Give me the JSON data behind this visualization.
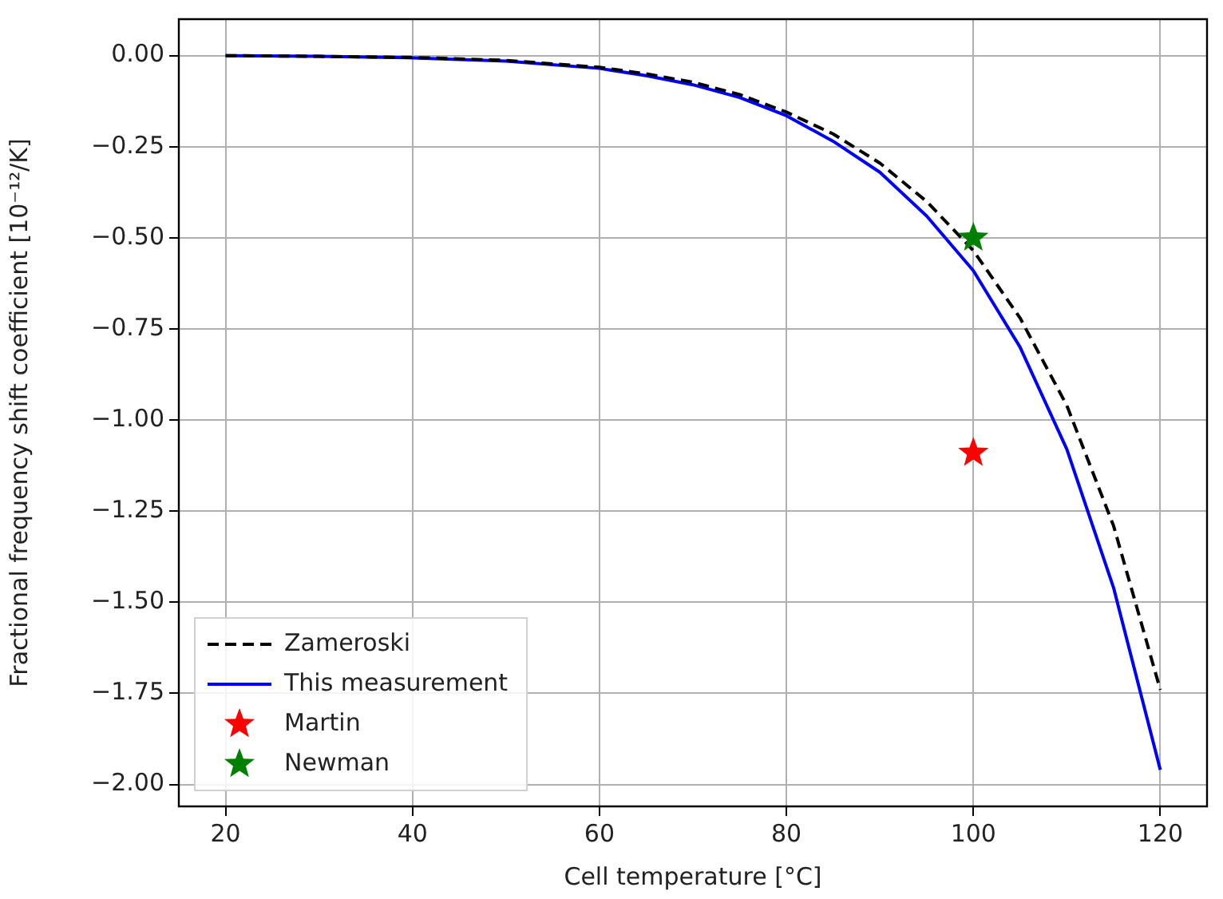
{
  "chart_data": {
    "type": "line",
    "xlabel": "Cell temperature [°C]",
    "ylabel": "Fractional frequency shift coefficient [10⁻¹²/K]",
    "xlim": [
      15,
      125
    ],
    "xticks": [
      20,
      40,
      60,
      80,
      100,
      120
    ],
    "ylim": [
      -2.06,
      0.1
    ],
    "yticks": [
      {
        "value": 0,
        "label": "0.00"
      },
      {
        "value": -0.25,
        "label": "−0.25"
      },
      {
        "value": -0.5,
        "label": "−0.50"
      },
      {
        "value": -0.75,
        "label": "−0.75"
      },
      {
        "value": -1,
        "label": "−1.00"
      },
      {
        "value": -1.25,
        "label": "−1.25"
      },
      {
        "value": -1.5,
        "label": "−1.50"
      },
      {
        "value": -1.75,
        "label": "−1.75"
      },
      {
        "value": -2,
        "label": "−2.00"
      }
    ],
    "grid": true,
    "legend": "bottom left",
    "series": [
      {
        "name": "Zameroski",
        "line_style": "dashed",
        "color": "#000000",
        "x": [
          20,
          30,
          40,
          50,
          60,
          65,
          70,
          75,
          80,
          85,
          90,
          95,
          100,
          105,
          110,
          115,
          120
        ],
        "values": [
          0,
          -0.002,
          -0.005,
          -0.013,
          -0.032,
          -0.05,
          -0.073,
          -0.107,
          -0.155,
          -0.215,
          -0.295,
          -0.4,
          -0.535,
          -0.72,
          -0.96,
          -1.29,
          -1.74
        ]
      },
      {
        "name": "This measurement",
        "line_style": "solid",
        "color": "#0000ff",
        "x": [
          20,
          30,
          40,
          50,
          60,
          65,
          70,
          75,
          80,
          85,
          90,
          95,
          100,
          105,
          110,
          115,
          120
        ],
        "values": [
          0,
          -0.002,
          -0.006,
          -0.015,
          -0.035,
          -0.055,
          -0.08,
          -0.115,
          -0.165,
          -0.235,
          -0.32,
          -0.44,
          -0.59,
          -0.8,
          -1.08,
          -1.46,
          -1.96
        ]
      },
      {
        "name": "Martin",
        "type": "scatter",
        "marker": "star",
        "color": "#ff0000",
        "x": [
          100
        ],
        "values": [
          -1.09
        ]
      },
      {
        "name": "Newman",
        "type": "scatter",
        "marker": "star",
        "color": "#008000",
        "x": [
          100
        ],
        "values": [
          -0.5
        ]
      }
    ]
  }
}
